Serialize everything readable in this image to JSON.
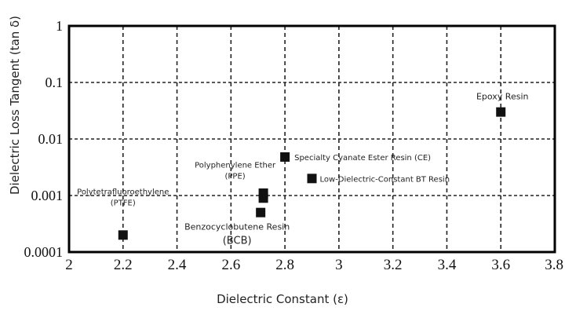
{
  "chart_data": {
    "type": "scatter",
    "title": "",
    "xlabel": "Dielectric Constant (ε)",
    "ylabel": "Dielectric Loss Tangent (tan δ)",
    "xlim": [
      2,
      3.8
    ],
    "ylim": [
      0.0001,
      1
    ],
    "yscale": "log",
    "grid": true,
    "x_ticks": [
      "2",
      "2.2",
      "2.4",
      "2.6",
      "2.8",
      "3",
      "3.2",
      "3.4",
      "3.6",
      "3.8"
    ],
    "y_ticks": [
      "1",
      "0.1",
      "0.01",
      "0.001",
      "0.0001"
    ],
    "points": [
      {
        "label": "Polytetrafluoroethylene\n(PTFE)",
        "x": 2.2,
        "y": 0.0002
      },
      {
        "label": "Benzocyclobutene Resin\n(BCB)",
        "x": 2.71,
        "y": 0.0005
      },
      {
        "label": "Polyphenylene Ether\n(PPE)",
        "x": 2.72,
        "y": 0.0009
      },
      {
        "label": "",
        "x": 2.72,
        "y": 0.0011
      },
      {
        "label": "Specialty Cyanate Ester Resin (CE)",
        "x": 2.8,
        "y": 0.0048
      },
      {
        "label": "Low-Dielectric-Constant BT Resin",
        "x": 2.9,
        "y": 0.002
      },
      {
        "label": "Epoxy Resin",
        "x": 3.6,
        "y": 0.03
      }
    ],
    "marker_color": "#111111"
  }
}
